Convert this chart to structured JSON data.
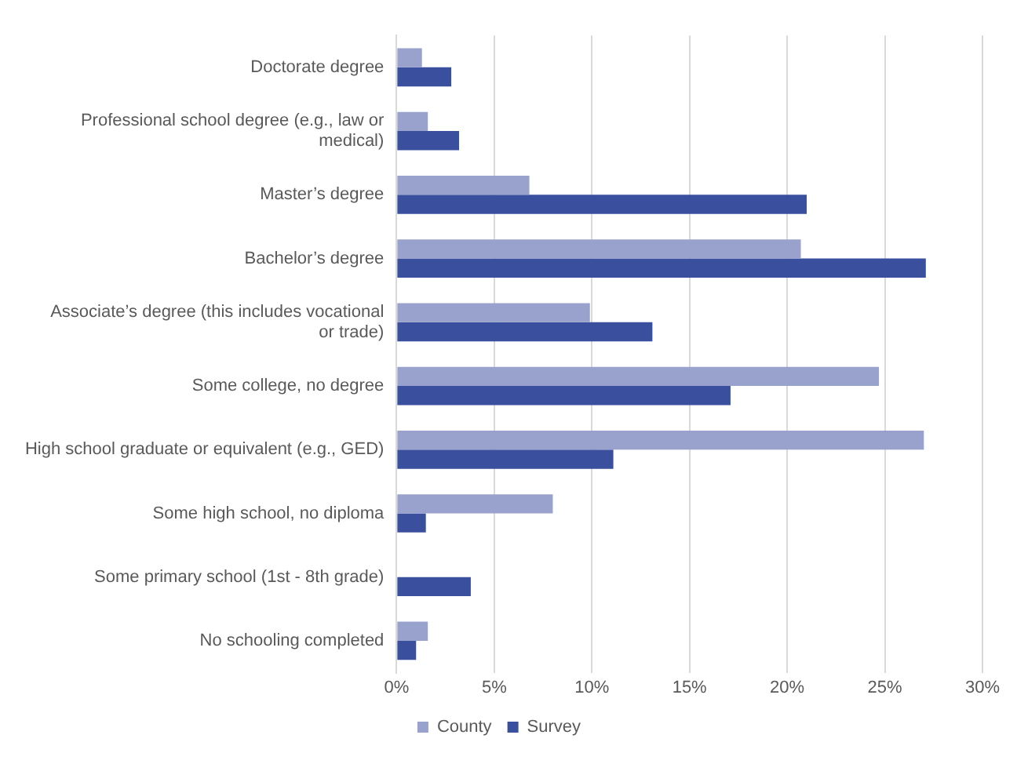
{
  "chart_data": {
    "type": "bar",
    "orientation": "horizontal",
    "categories": [
      "Doctorate degree",
      "Professional school degree (e.g., law or medical)",
      "Master’s degree",
      "Bachelor’s degree",
      "Associate’s degree (this includes vocational or trade)",
      "Some college, no degree",
      "High school graduate or equivalent (e.g., GED)",
      "Some high school, no diploma",
      "Some primary school (1st - 8th grade)",
      "No schooling completed"
    ],
    "series": [
      {
        "name": "County",
        "color": "#98a2cd",
        "values": [
          1.3,
          1.6,
          6.8,
          20.7,
          9.9,
          24.7,
          27,
          8,
          0,
          1.6
        ]
      },
      {
        "name": "Survey",
        "color": "#3a4f9e",
        "values": [
          2.8,
          3.2,
          21,
          27.1,
          13.1,
          17.1,
          11.1,
          1.5,
          3.8,
          1
        ]
      }
    ],
    "xlim": [
      0,
      30
    ],
    "xticks": [
      {
        "value": 0,
        "label": "0%"
      },
      {
        "value": 5,
        "label": "5%"
      },
      {
        "value": 10,
        "label": "10%"
      },
      {
        "value": 15,
        "label": "15%"
      },
      {
        "value": 20,
        "label": "20%"
      },
      {
        "value": 25,
        "label": "25%"
      },
      {
        "value": 30,
        "label": "30%"
      }
    ],
    "grid": "x",
    "legend": "bottom"
  }
}
